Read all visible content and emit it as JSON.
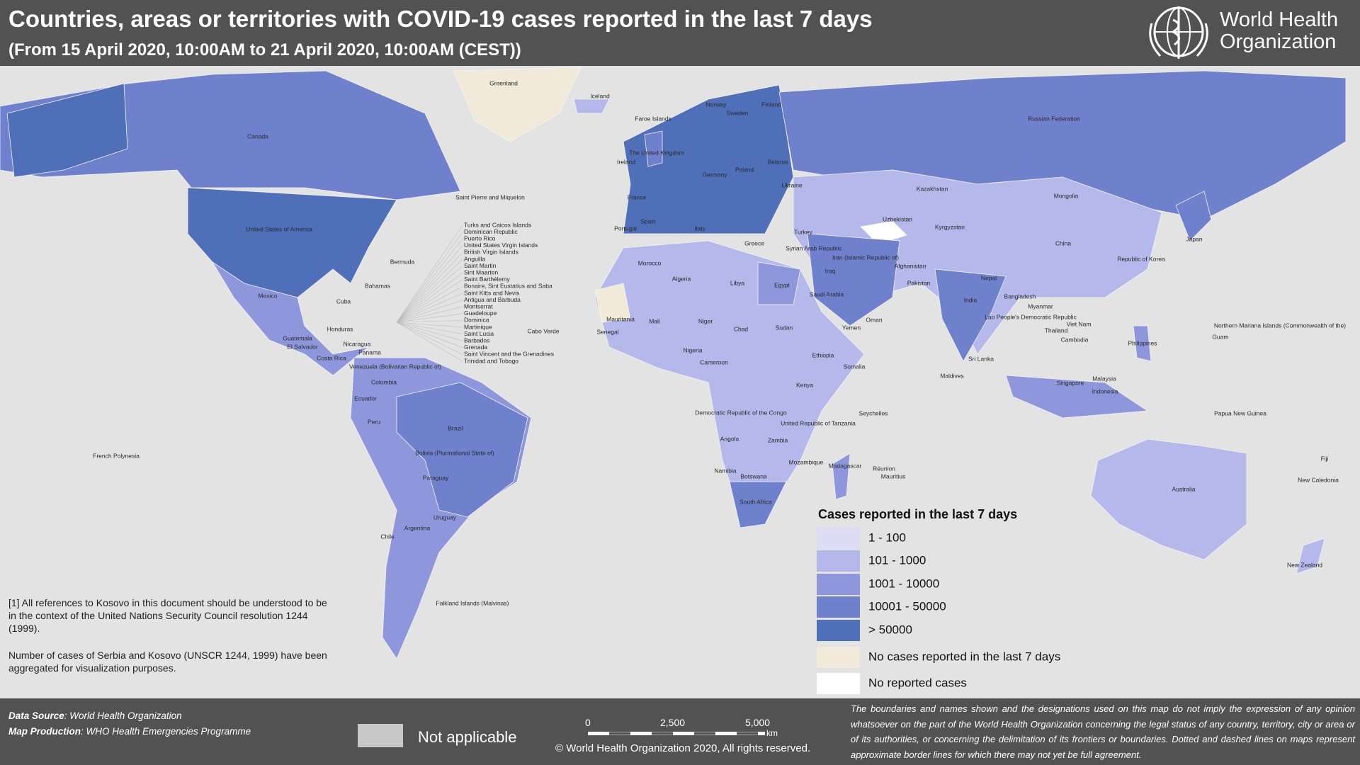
{
  "header": {
    "title": "Countries, areas or territories with COVID-19 cases reported in the last 7 days",
    "subtitle": "(From 15 April 2020, 10:00AM  to 21 April 2020, 10:00AM (CEST))",
    "logo_text": [
      "World Health",
      "Organization"
    ]
  },
  "map": {
    "labels": [
      "Canada",
      "United States of America",
      "Mexico",
      "Greenland",
      "Iceland",
      "Brazil",
      "Peru",
      "Colombia",
      "Argentina",
      "Chile",
      "Bolivia (Plurinational State of)",
      "Paraguay",
      "Uruguay",
      "Ecuador",
      "Venezuela (Bolivarian Republic of)",
      "French Polynesia",
      "Falkland Islands (Malvinas)",
      "Russian Federation",
      "Kazakhstan",
      "China",
      "Mongolia",
      "India",
      "Pakistan",
      "Australia",
      "New Zealand",
      "Indonesia",
      "Philippines",
      "Japan",
      "Republic of Korea",
      "Algeria",
      "Libya",
      "Egypt",
      "Niger",
      "Chad",
      "Sudan",
      "Mali",
      "Nigeria",
      "Ethiopia",
      "Kenya",
      "Somalia",
      "Democratic Republic of the Congo",
      "Angola",
      "Namibia",
      "South Africa",
      "Madagascar",
      "United Republic of Tanzania",
      "Mozambique",
      "Zambia",
      "Botswana",
      "Cameroon",
      "Morocco",
      "Mauritania",
      "Senegal",
      "Spain",
      "Portugal",
      "France",
      "Germany",
      "Poland",
      "Ukraine",
      "Belarus",
      "Norway",
      "Sweden",
      "Finland",
      "Turkey",
      "Iran (Islamic Republic of)",
      "Iraq",
      "Saudi Arabia",
      "Afghanistan",
      "Uzbekistan",
      "Kyrgyzstan",
      "Thailand",
      "Viet Nam",
      "Myanmar",
      "Bangladesh",
      "Nepal",
      "Sri Lanka",
      "Papua New Guinea",
      "Cuba",
      "Bermuda",
      "Bahamas",
      "Cabo Verde",
      "Saint Pierre and Miquelon",
      "Yemen",
      "Oman",
      "Syrian Arab Republic",
      "Malaysia",
      "Singapore",
      "Cambodia",
      "Fiji",
      "New Caledonia",
      "Maldives",
      "Seychelles",
      "Faroe Islands",
      "The United Kingdom",
      "Ireland",
      "Italy",
      "Greece",
      "Guatemala",
      "Honduras",
      "Nicaragua",
      "Panama",
      "Costa Rica",
      "El Salvador",
      "Northern Mariana Islands (Commonwealth of the)",
      "Guam",
      "Lao People's Democratic Republic",
      "Réunion",
      "Mauritius"
    ],
    "caribbean_labels": [
      "Turks and Caicos Islands",
      "Dominican Republic",
      "Puerto Rico",
      "United States Virgin Islands",
      "British Virgin Islands",
      "Anguilla",
      "Saint Martin",
      "Sint Maarten",
      "Saint Barthélemy",
      "Bonaire, Sint Eustatius and Saba",
      "Saint Kitts and Nevis",
      "Antigua and Barbuda",
      "Montserrat",
      "Guadeloupe",
      "Dominica",
      "Martinique",
      "Saint Lucia",
      "Barbados",
      "Grenada",
      "Saint Vincent and the Grenadines",
      "Trinidad and Tobago"
    ]
  },
  "legend": {
    "title": "Cases reported in the last 7 days",
    "items": [
      {
        "label": "1 - 100",
        "color": "#dcdcf5"
      },
      {
        "label": "101 - 1000",
        "color": "#b4b8ea"
      },
      {
        "label": "1001 - 10000",
        "color": "#8f97dc"
      },
      {
        "label": "10001 - 50000",
        "color": "#6f80cc"
      },
      {
        "label": "> 50000",
        "color": "#4f6fb8"
      },
      {
        "label": "No cases reported in the last 7 days",
        "color": "#f2ead8"
      },
      {
        "label": "No reported cases",
        "color": "#ffffff"
      }
    ]
  },
  "notes": [
    "[1] All references to Kosovo in this document should be understood to be in the context of the United Nations Security Council resolution 1244 (1999).",
    "Number of cases of Serbia and Kosovo (UNSCR 1244, 1999)  have been aggregated for visualization purposes."
  ],
  "footer": {
    "data_source_label": "Data Source",
    "data_source": ": World Health Organization",
    "map_production_label": "Map Production",
    "map_production": ": WHO Health Emergencies Programme",
    "not_applicable": "Not applicable",
    "scale_labels": [
      "0",
      "2,500",
      "5,000"
    ],
    "scale_unit": "km",
    "copyright": "© World Health Organization  2020,  All rights reserved.",
    "disclaimer": "The boundaries and names shown and the designations used on this map do not imply the expression of any opinion whatsoever on the part of the World Health Organization concerning the legal status of any country, territory, city or area or of its authorities, or concerning the delimitation of its frontiers or boundaries. Dotted and dashed lines on maps represent approximate border lines for which there may not yet be full agreement."
  }
}
